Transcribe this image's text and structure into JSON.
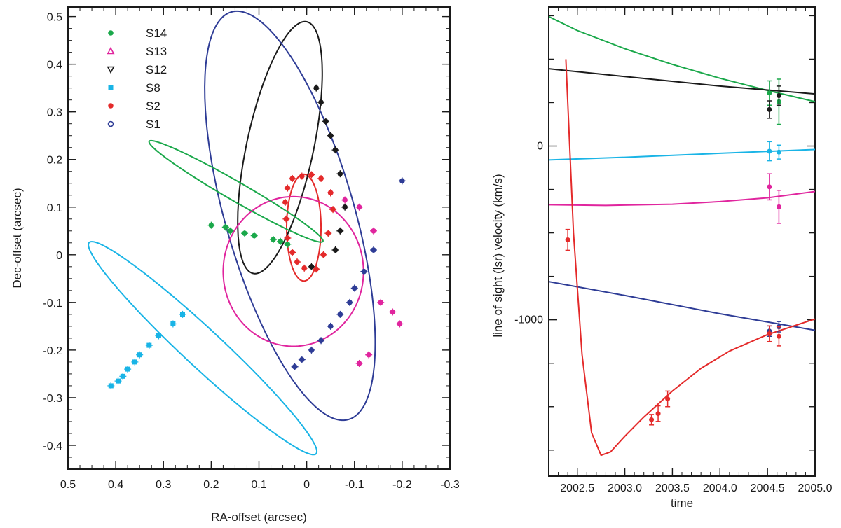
{
  "colors": {
    "S14": "#1aa84a",
    "S13": "#e0259e",
    "S12": "#1a1a1a",
    "S8": "#19b4e6",
    "S2": "#e42a2a",
    "S1": "#2e3c96"
  },
  "chart_data": [
    {
      "type": "scatter",
      "xlabel": "RA-offset (arcsec)",
      "ylabel": "Dec-offset (arcsec)",
      "xlim": [
        0.5,
        -0.3
      ],
      "ylim": [
        -0.45,
        0.52
      ],
      "x_ticks": [
        "0.5",
        "0.4",
        "0.3",
        "0.2",
        "0.1",
        "0",
        "-0.1",
        "-0.2",
        "-0.3"
      ],
      "y_ticks": [
        "0.5",
        "0.4",
        "0.3",
        "0.2",
        "0.1",
        "0",
        "-0.1",
        "-0.2",
        "-0.3",
        "-0.4"
      ],
      "legend_position": "top-left",
      "legend": [
        {
          "name": "S14",
          "marker": "filled-circle"
        },
        {
          "name": "S13",
          "marker": "open-triangle"
        },
        {
          "name": "S12",
          "marker": "down-triangle"
        },
        {
          "name": "S8",
          "marker": "filled-square"
        },
        {
          "name": "S2",
          "marker": "filled-circle"
        },
        {
          "name": "S1",
          "marker": "open-circle"
        }
      ],
      "orbits": [
        {
          "name": "S2",
          "center": [
            0.006,
            0.057
          ],
          "a": 0.036,
          "b": 0.112,
          "theta": 0
        },
        {
          "name": "S12",
          "center": [
            0.056,
            0.225
          ],
          "a": 0.07,
          "b": 0.27,
          "theta": 12
        },
        {
          "name": "S1",
          "center": [
            0.035,
            0.082
          ],
          "a": 0.135,
          "b": 0.445,
          "theta": -16
        },
        {
          "name": "S13",
          "center": [
            0.028,
            -0.035
          ],
          "a": 0.147,
          "b": 0.157,
          "theta": 0
        },
        {
          "name": "S14",
          "center": [
            0.148,
            0.133
          ],
          "a": 0.02,
          "b": 0.21,
          "theta": 120
        },
        {
          "name": "S8",
          "center": [
            0.218,
            -0.196
          ],
          "a": 0.04,
          "b": 0.325,
          "theta": -47
        }
      ],
      "series": [
        {
          "name": "S14",
          "points": [
            [
              0.2,
              0.062
            ],
            [
              0.17,
              0.058
            ],
            [
              0.16,
              0.05
            ],
            [
              0.13,
              0.045
            ],
            [
              0.11,
              0.04
            ],
            [
              0.07,
              0.032
            ],
            [
              0.055,
              0.028
            ],
            [
              0.04,
              0.022
            ]
          ]
        },
        {
          "name": "S13",
          "points": [
            [
              -0.05,
              0.13
            ],
            [
              -0.08,
              0.115
            ],
            [
              -0.11,
              0.1
            ],
            [
              -0.14,
              0.05
            ],
            [
              -0.155,
              -0.1
            ],
            [
              -0.18,
              -0.12
            ],
            [
              -0.195,
              -0.145
            ],
            [
              -0.13,
              -0.21
            ],
            [
              -0.11,
              -0.228
            ]
          ]
        },
        {
          "name": "S12",
          "points": [
            [
              -0.02,
              0.35
            ],
            [
              -0.03,
              0.32
            ],
            [
              -0.04,
              0.28
            ],
            [
              -0.05,
              0.25
            ],
            [
              -0.06,
              0.22
            ],
            [
              -0.07,
              0.17
            ],
            [
              -0.08,
              0.1
            ],
            [
              -0.07,
              0.05
            ],
            [
              -0.06,
              0.01
            ],
            [
              -0.01,
              -0.025
            ]
          ]
        },
        {
          "name": "S8",
          "points": [
            [
              0.26,
              -0.125
            ],
            [
              0.28,
              -0.145
            ],
            [
              0.31,
              -0.17
            ],
            [
              0.33,
              -0.19
            ],
            [
              0.35,
              -0.21
            ],
            [
              0.36,
              -0.225
            ],
            [
              0.375,
              -0.24
            ],
            [
              0.385,
              -0.255
            ],
            [
              0.395,
              -0.265
            ],
            [
              0.41,
              -0.275
            ]
          ]
        },
        {
          "name": "S2",
          "points": [
            [
              0.01,
              0.165
            ],
            [
              -0.01,
              0.168
            ],
            [
              0.03,
              0.16
            ],
            [
              0.04,
              0.14
            ],
            [
              -0.03,
              0.16
            ],
            [
              -0.05,
              0.13
            ],
            [
              0.045,
              0.11
            ],
            [
              0.043,
              0.075
            ],
            [
              -0.055,
              0.095
            ],
            [
              0.04,
              0.035
            ],
            [
              -0.045,
              0.045
            ],
            [
              0.03,
              0.005
            ],
            [
              0.02,
              -0.015
            ],
            [
              0.005,
              -0.028
            ],
            [
              -0.02,
              -0.03
            ],
            [
              -0.035,
              0.0
            ]
          ]
        },
        {
          "name": "S1",
          "points": [
            [
              -0.14,
              0.01
            ],
            [
              -0.12,
              -0.035
            ],
            [
              -0.1,
              -0.07
            ],
            [
              -0.09,
              -0.1
            ],
            [
              -0.07,
              -0.125
            ],
            [
              -0.05,
              -0.15
            ],
            [
              -0.03,
              -0.18
            ],
            [
              -0.01,
              -0.2
            ],
            [
              0.01,
              -0.22
            ],
            [
              0.025,
              -0.235
            ],
            [
              -0.2,
              0.155
            ]
          ]
        }
      ]
    },
    {
      "type": "line",
      "xlabel": "time",
      "ylabel": "line of sight (lsr) velocity (km/s)",
      "xlim": [
        2002.2,
        2005.0
      ],
      "ylim": [
        -1900,
        800
      ],
      "x_ticks": [
        "2002.5",
        "2003.0",
        "2003.5",
        "2004.0",
        "2004.5",
        "2005.0"
      ],
      "y_ticks": [
        "0",
        "-1000"
      ],
      "series": [
        {
          "name": "S14",
          "x": [
            2002.2,
            2002.5,
            2003.0,
            2003.5,
            2004.0,
            2004.5,
            2005.0
          ],
          "y": [
            745,
            665,
            560,
            470,
            390,
            320,
            255
          ]
        },
        {
          "name": "S12",
          "x": [
            2002.2,
            2003.0,
            2004.0,
            2005.0
          ],
          "y": [
            445,
            400,
            345,
            300
          ]
        },
        {
          "name": "S8",
          "x": [
            2002.2,
            2003.0,
            2004.0,
            2005.0
          ],
          "y": [
            -80,
            -65,
            -42,
            -20
          ]
        },
        {
          "name": "S13",
          "x": [
            2002.2,
            2002.8,
            2003.5,
            2004.0,
            2004.5,
            2005.0
          ],
          "y": [
            -338,
            -342,
            -335,
            -320,
            -298,
            -262
          ]
        },
        {
          "name": "S1",
          "x": [
            2002.2,
            2003.0,
            2004.0,
            2005.0
          ],
          "y": [
            -780,
            -860,
            -965,
            -1060
          ]
        },
        {
          "name": "S2",
          "x": [
            2002.38,
            2002.46,
            2002.55,
            2002.65,
            2002.75,
            2002.85,
            2003.0,
            2003.2,
            2003.5,
            2003.8,
            2004.1,
            2004.5,
            2005.0
          ],
          "y": [
            500,
            -500,
            -1200,
            -1650,
            -1780,
            -1760,
            -1670,
            -1560,
            -1410,
            -1280,
            -1180,
            -1085,
            -995
          ]
        }
      ],
      "measurements": [
        {
          "name": "S14",
          "x": 2004.52,
          "y": 305,
          "err": 70
        },
        {
          "name": "S14",
          "x": 2004.62,
          "y": 255,
          "err": 130
        },
        {
          "name": "S12",
          "x": 2004.52,
          "y": 210,
          "err": 50
        },
        {
          "name": "S12",
          "x": 2004.62,
          "y": 290,
          "err": 55
        },
        {
          "name": "S8",
          "x": 2004.52,
          "y": -30,
          "err": 55
        },
        {
          "name": "S8",
          "x": 2004.62,
          "y": -35,
          "err": 40
        },
        {
          "name": "S13",
          "x": 2004.52,
          "y": -235,
          "err": 75
        },
        {
          "name": "S13",
          "x": 2004.62,
          "y": -350,
          "err": 95
        },
        {
          "name": "S1",
          "x": 2004.52,
          "y": -1065,
          "err": 30
        },
        {
          "name": "S1",
          "x": 2004.62,
          "y": -1040,
          "err": 30
        },
        {
          "name": "S2",
          "x": 2002.4,
          "y": -540,
          "err": 60
        },
        {
          "name": "S2",
          "x": 2003.28,
          "y": -1575,
          "err": 30
        },
        {
          "name": "S2",
          "x": 2003.35,
          "y": -1540,
          "err": 45
        },
        {
          "name": "S2",
          "x": 2003.45,
          "y": -1455,
          "err": 45
        },
        {
          "name": "S2",
          "x": 2004.52,
          "y": -1080,
          "err": 45
        },
        {
          "name": "S2",
          "x": 2004.62,
          "y": -1095,
          "err": 55
        }
      ]
    }
  ]
}
